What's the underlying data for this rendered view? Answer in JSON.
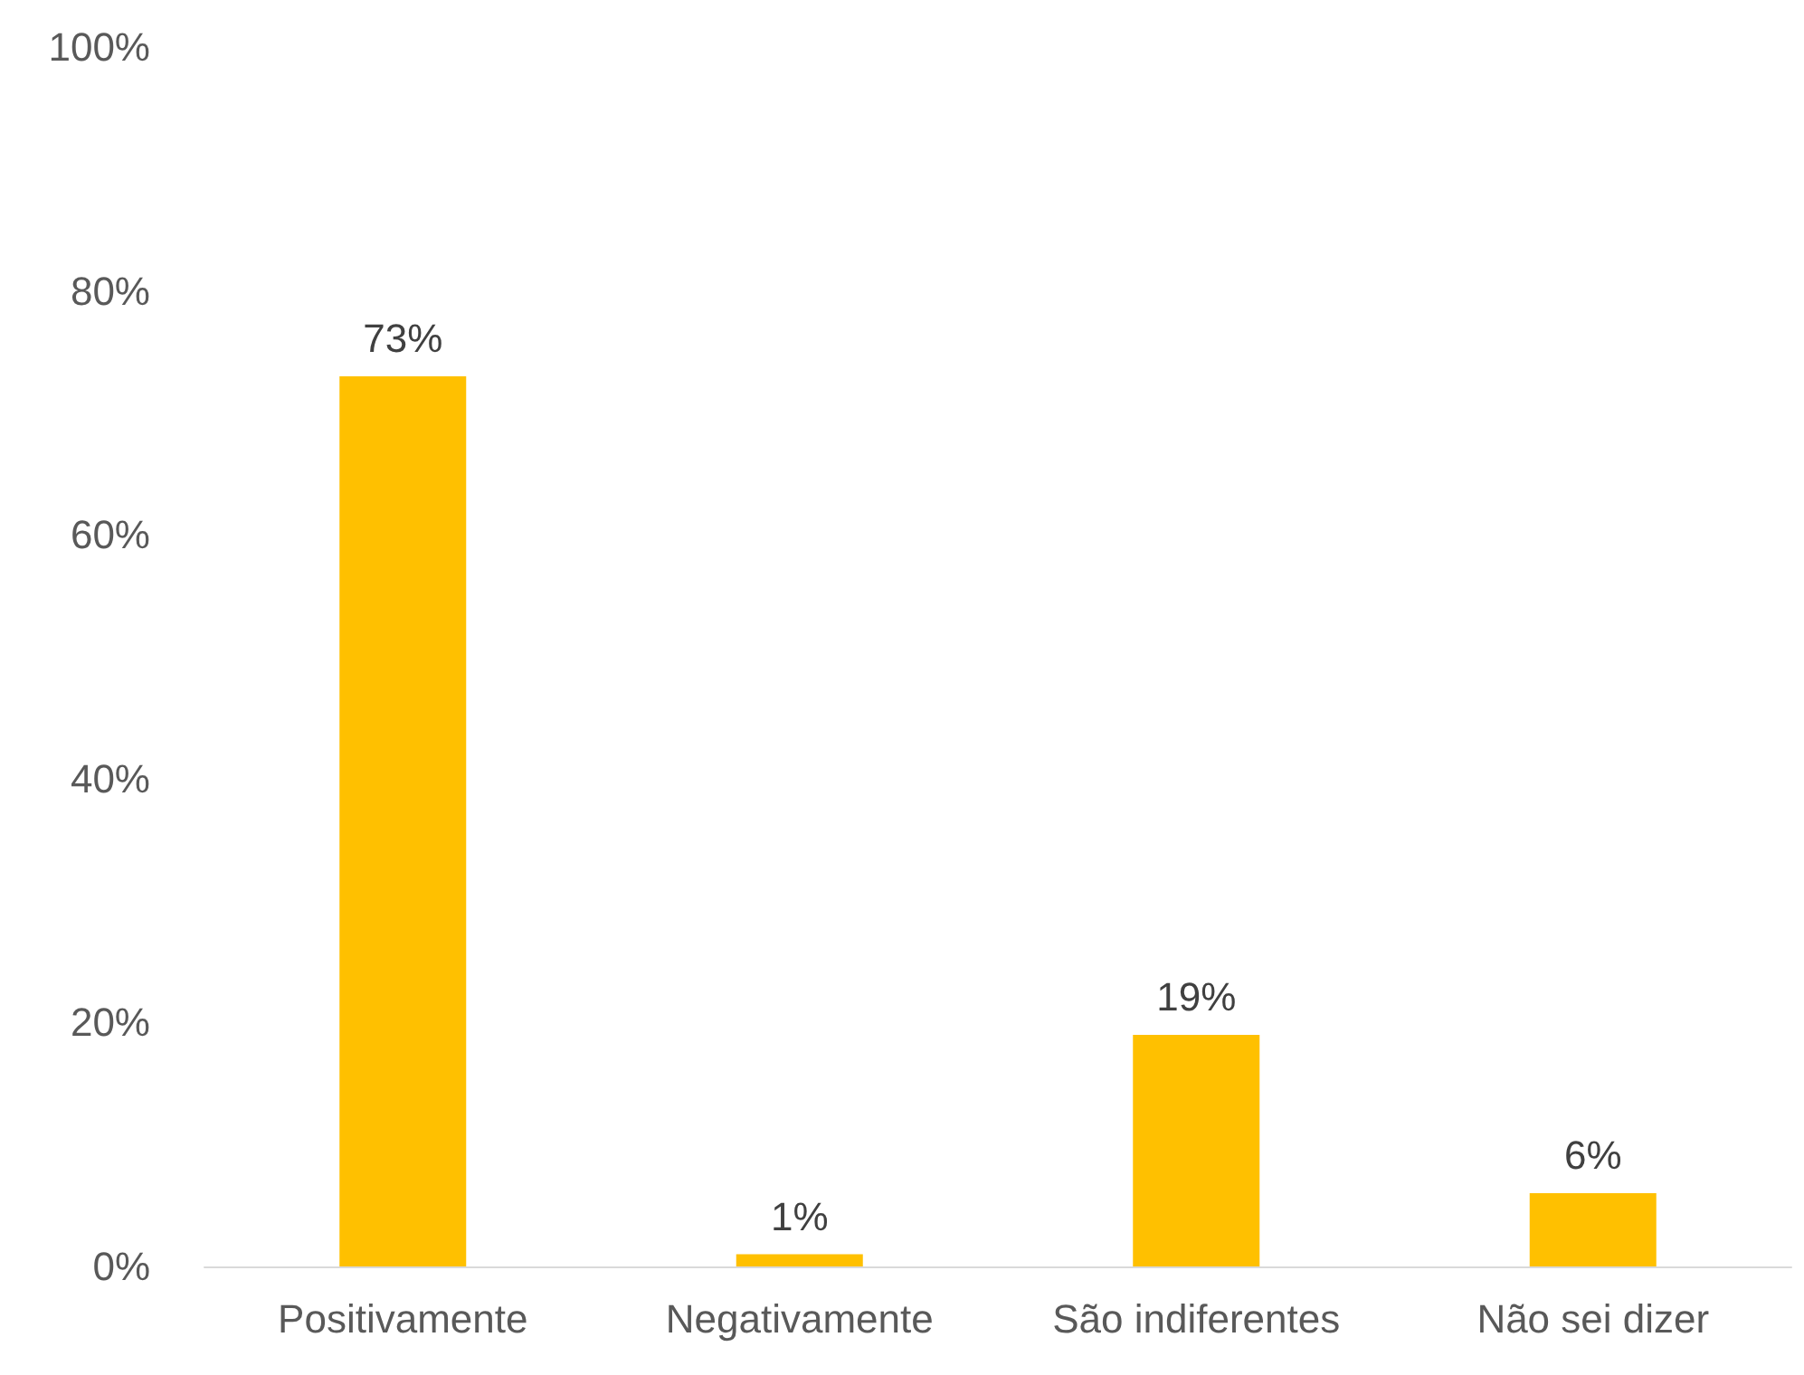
{
  "chart_data": {
    "type": "bar",
    "categories": [
      "Positivamente",
      "Negativamente",
      "São indiferentes",
      "Não sei dizer"
    ],
    "values": [
      73,
      1,
      19,
      6
    ],
    "value_labels": [
      "73%",
      "1%",
      "19%",
      "6%"
    ],
    "color": "#ffc000",
    "ylim": [
      0,
      100
    ],
    "yticks": [
      {
        "value": 0,
        "label": "0%"
      },
      {
        "value": 20,
        "label": "20%"
      },
      {
        "value": 40,
        "label": "40%"
      },
      {
        "value": 60,
        "label": "60%"
      },
      {
        "value": 80,
        "label": "80%"
      },
      {
        "value": 100,
        "label": "100%"
      }
    ],
    "relative": false
  }
}
